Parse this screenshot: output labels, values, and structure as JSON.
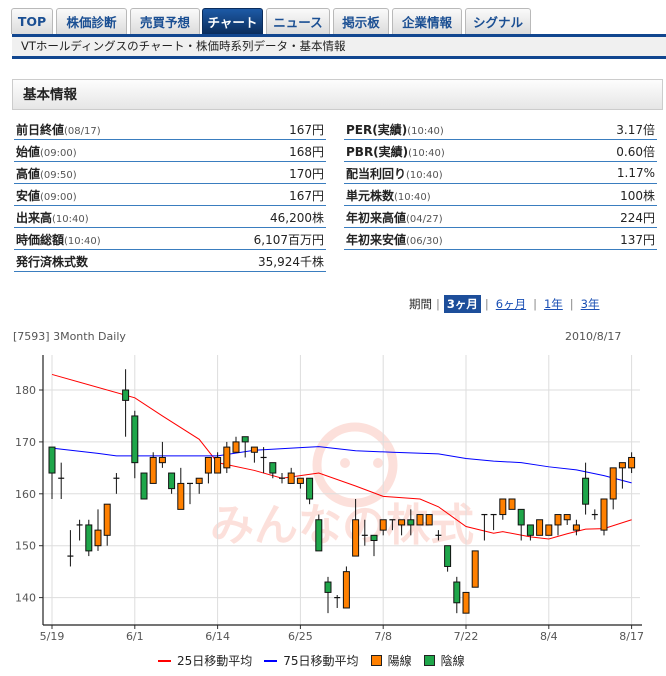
{
  "tabs": [
    {
      "label": "TOP",
      "active": false
    },
    {
      "label": "株価診断",
      "active": false
    },
    {
      "label": "売買予想",
      "active": false
    },
    {
      "label": "チャート",
      "active": true
    },
    {
      "label": "ニュース",
      "active": false
    },
    {
      "label": "掲示板",
      "active": false
    },
    {
      "label": "企業情報",
      "active": false
    },
    {
      "label": "シグナル",
      "active": false
    }
  ],
  "subtitle": "VTホールディングスのチャート・株価時系列データ・基本情報",
  "section_title": "基本情報",
  "basic_left": [
    {
      "label": "前日終値",
      "time": "(08/17)",
      "value": "167円"
    },
    {
      "label": "始値",
      "time": "(09:00)",
      "value": "168円"
    },
    {
      "label": "高値",
      "time": "(09:50)",
      "value": "170円"
    },
    {
      "label": "安値",
      "time": "(09:00)",
      "value": "167円"
    },
    {
      "label": "出来高",
      "time": "(10:40)",
      "value": "46,200株"
    },
    {
      "label": "時価総額",
      "time": "(10:40)",
      "value": "6,107百万円"
    },
    {
      "label": "発行済株式数",
      "time": "",
      "value": "35,924千株"
    }
  ],
  "basic_right": [
    {
      "label": "PER(実績)",
      "time": "(10:40)",
      "value": "3.17倍"
    },
    {
      "label": "PBR(実績)",
      "time": "(10:40)",
      "value": "0.60倍"
    },
    {
      "label": "配当利回り",
      "time": "(10:40)",
      "value": "1.17%"
    },
    {
      "label": "単元株数",
      "time": "(10:40)",
      "value": "100株"
    },
    {
      "label": "年初来高値",
      "time": "(04/27)",
      "value": "224円"
    },
    {
      "label": "年初来安値",
      "time": "(06/30)",
      "value": "137円"
    }
  ],
  "period": {
    "label": "期間",
    "options": [
      "3ヶ月",
      "6ヶ月",
      "1年",
      "3年"
    ],
    "selected": "3ヶ月"
  },
  "chart_title": "[7593] 3Month Daily",
  "chart_date": "2010/8/17",
  "watermark_logo": "みんなの株式",
  "colors": {
    "up": "#ff8000",
    "down": "#1fa64a",
    "ma25": "#ff0000",
    "ma75": "#0000ff",
    "tab_active": "#0b2d5c",
    "rule": "#11468f"
  },
  "chart_data": {
    "type": "candlestick",
    "ylim": [
      134.7,
      186.7
    ],
    "yticks": [
      180,
      170,
      160,
      150,
      140
    ],
    "xticks": [
      "5/19",
      "6/1",
      "6/14",
      "6/25",
      "7/8",
      "7/22",
      "8/4",
      "8/17"
    ],
    "grid": true,
    "legend_position": "bottom",
    "legend": [
      "25日移動平均",
      "75日移動平均",
      "陽線",
      "陰線"
    ],
    "candles_fields": [
      "date",
      "open",
      "high",
      "low",
      "close"
    ],
    "candles": [
      [
        "5/19",
        169,
        169,
        159,
        164
      ],
      [
        "5/20",
        163,
        166,
        159,
        163
      ],
      [
        "5/21",
        148,
        153,
        146,
        148
      ],
      [
        "5/24",
        154,
        155,
        151,
        154
      ],
      [
        "5/25",
        154,
        155,
        148,
        149
      ],
      [
        "5/26",
        150,
        157,
        149,
        153
      ],
      [
        "5/27",
        152,
        158,
        150,
        158
      ],
      [
        "5/28",
        163,
        164,
        160,
        163
      ],
      [
        "5/31",
        180,
        184,
        171,
        178
      ],
      [
        "6/1",
        175,
        176,
        163,
        166
      ],
      [
        "6/2",
        164,
        164,
        159,
        159
      ],
      [
        "6/3",
        162,
        168,
        162,
        167
      ],
      [
        "6/4",
        166,
        170,
        165,
        167
      ],
      [
        "6/7",
        164,
        164,
        160,
        161
      ],
      [
        "6/8",
        157,
        165,
        157,
        162
      ],
      [
        "6/9",
        162,
        162,
        158,
        162
      ],
      [
        "6/10",
        162,
        163,
        160,
        163
      ],
      [
        "6/11",
        164,
        167,
        162,
        167
      ],
      [
        "6/14",
        164,
        168,
        164,
        167
      ],
      [
        "6/15",
        165,
        170,
        164,
        169
      ],
      [
        "6/16",
        168,
        171,
        168,
        170
      ],
      [
        "6/17",
        171,
        171,
        167,
        170
      ],
      [
        "6/18",
        168,
        169,
        166,
        169
      ],
      [
        "6/21",
        167,
        169,
        164,
        167
      ],
      [
        "6/22",
        166,
        166,
        163,
        164
      ],
      [
        "6/23",
        163,
        164,
        162,
        163
      ],
      [
        "6/24",
        162,
        165,
        162,
        164
      ],
      [
        "6/25",
        162,
        163,
        161,
        163
      ],
      [
        "6/28",
        163,
        163,
        158,
        159
      ],
      [
        "6/29",
        155,
        156,
        149,
        149
      ],
      [
        "6/30",
        143,
        144,
        137,
        141
      ],
      [
        "7/1",
        140,
        140.5,
        138,
        140
      ],
      [
        "7/2",
        138,
        146,
        138,
        145
      ],
      [
        "7/5",
        148,
        159,
        148,
        155
      ],
      [
        "7/6",
        152,
        155,
        150,
        152
      ],
      [
        "7/7",
        152,
        152,
        148,
        151
      ],
      [
        "7/8",
        153,
        155,
        152,
        155
      ],
      [
        "7/9",
        155,
        155,
        153,
        155
      ],
      [
        "7/12",
        154,
        155,
        152,
        155
      ],
      [
        "7/13",
        155,
        157,
        152,
        154
      ],
      [
        "7/14",
        154,
        156,
        154,
        156
      ],
      [
        "7/15",
        154,
        156,
        154,
        156
      ],
      [
        "7/16",
        152,
        153,
        151,
        152
      ],
      [
        "7/20",
        150,
        150,
        145,
        146
      ],
      [
        "7/21",
        143,
        144,
        137,
        139
      ],
      [
        "7/22",
        137,
        141,
        137,
        141
      ],
      [
        "7/23",
        142,
        149,
        142,
        149
      ],
      [
        "7/26",
        156,
        156,
        151,
        156
      ],
      [
        "7/27",
        156,
        156,
        153,
        156
      ],
      [
        "7/28",
        156,
        159,
        155,
        159
      ],
      [
        "7/29",
        157,
        159,
        157,
        159
      ],
      [
        "7/30",
        157,
        157,
        151,
        154
      ],
      [
        "8/2",
        154,
        154,
        151,
        152
      ],
      [
        "8/3",
        152,
        155,
        152,
        155
      ],
      [
        "8/4",
        152,
        154,
        152,
        154
      ],
      [
        "8/5",
        154,
        156,
        152,
        156
      ],
      [
        "8/6",
        155,
        156,
        154,
        156
      ],
      [
        "8/9",
        153,
        155,
        152,
        154
      ],
      [
        "8/10",
        163,
        166,
        156,
        158
      ],
      [
        "8/11",
        156,
        157,
        155,
        156
      ],
      [
        "8/12",
        153,
        159,
        152,
        159
      ],
      [
        "8/13",
        159,
        165,
        157,
        165
      ],
      [
        "8/16",
        165,
        166,
        161,
        166
      ],
      [
        "8/17",
        165,
        168,
        164,
        167
      ]
    ],
    "ma25": [
      [
        "5/19",
        183
      ],
      [
        "6/1",
        178.5
      ],
      [
        "6/4",
        175
      ],
      [
        "6/10",
        170.5
      ],
      [
        "6/14",
        166
      ],
      [
        "6/18",
        164.5
      ],
      [
        "6/23",
        163
      ],
      [
        "6/25",
        163.5
      ],
      [
        "6/29",
        164
      ],
      [
        "7/5",
        161.5
      ],
      [
        "7/8",
        159.5
      ],
      [
        "7/14",
        159
      ],
      [
        "7/16",
        157.5
      ],
      [
        "7/22",
        153.7
      ],
      [
        "7/27",
        152.4
      ],
      [
        "7/28",
        152.7
      ],
      [
        "8/2",
        151.7
      ],
      [
        "8/4",
        151.3
      ],
      [
        "8/6",
        152.3
      ],
      [
        "8/10",
        153.2
      ],
      [
        "8/12",
        153.3
      ],
      [
        "8/17",
        155
      ]
    ],
    "ma75": [
      [
        "5/19",
        168.8
      ],
      [
        "5/26",
        167.8
      ],
      [
        "5/28",
        167.3
      ],
      [
        "6/14",
        167.3
      ],
      [
        "6/18",
        168.4
      ],
      [
        "6/25",
        168.9
      ],
      [
        "6/29",
        169.1
      ],
      [
        "7/5",
        168.3
      ],
      [
        "7/9",
        168
      ],
      [
        "7/16",
        167.7
      ],
      [
        "7/22",
        166.8
      ],
      [
        "7/27",
        166.3
      ],
      [
        "7/30",
        166
      ],
      [
        "8/4",
        165.2
      ],
      [
        "8/9",
        164.6
      ],
      [
        "8/12",
        163.5
      ],
      [
        "8/17",
        162.1
      ]
    ]
  }
}
